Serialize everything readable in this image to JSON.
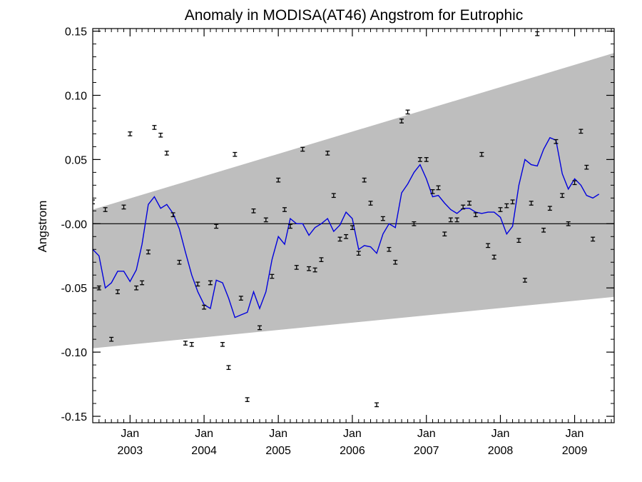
{
  "chart_data": {
    "type": "line",
    "title": "Anomaly in MODISA(AT46) Angstrom for Eutrophic",
    "xlabel": "",
    "ylabel": "Angstrom",
    "x_range": [
      "2002-07-01",
      "2009-07-15"
    ],
    "ylim": [
      -0.155,
      0.152
    ],
    "y_ticks": [
      {
        "value": 0.15,
        "label": "0.15"
      },
      {
        "value": 0.1,
        "label": "0.10"
      },
      {
        "value": 0.05,
        "label": "0.05"
      },
      {
        "value": 0.0,
        "label": "-0.00"
      },
      {
        "value": -0.05,
        "label": "-0.05"
      },
      {
        "value": -0.1,
        "label": "-0.10"
      },
      {
        "value": -0.15,
        "label": "-0.15"
      }
    ],
    "x_ticks": [
      {
        "date": "2003-01-01",
        "month": "Jan",
        "year": "2003"
      },
      {
        "date": "2004-01-01",
        "month": "Jan",
        "year": "2004"
      },
      {
        "date": "2005-01-01",
        "month": "Jan",
        "year": "2005"
      },
      {
        "date": "2006-01-01",
        "month": "Jan",
        "year": "2006"
      },
      {
        "date": "2007-01-01",
        "month": "Jan",
        "year": "2007"
      },
      {
        "date": "2008-01-01",
        "month": "Jan",
        "year": "2008"
      },
      {
        "date": "2009-01-01",
        "month": "Jan",
        "year": "2009"
      }
    ],
    "zero_line": 0.0,
    "band": {
      "start": {
        "date": "2002-07-01",
        "upper": 0.011,
        "lower": -0.097
      },
      "end": {
        "date": "2009-07-15",
        "upper": 0.133,
        "lower": -0.057
      },
      "color": "#bebebe"
    },
    "monthly_points": {
      "color": "#000000",
      "error": 0.0015,
      "points": [
        [
          "2002-07-01",
          0.017
        ],
        [
          "2002-08-01",
          -0.05
        ],
        [
          "2002-09-01",
          0.011
        ],
        [
          "2002-10-01",
          -0.09
        ],
        [
          "2002-11-01",
          -0.053
        ],
        [
          "2002-12-01",
          0.013
        ],
        [
          "2003-01-01",
          0.07
        ],
        [
          "2003-02-01",
          -0.05
        ],
        [
          "2003-03-01",
          -0.046
        ],
        [
          "2003-04-01",
          -0.022
        ],
        [
          "2003-05-01",
          0.075
        ],
        [
          "2003-06-01",
          0.069
        ],
        [
          "2003-07-01",
          0.055
        ],
        [
          "2003-08-01",
          0.007
        ],
        [
          "2003-09-01",
          -0.03
        ],
        [
          "2003-10-01",
          -0.093
        ],
        [
          "2003-11-01",
          -0.094
        ],
        [
          "2003-12-01",
          -0.047
        ],
        [
          "2004-01-01",
          -0.065
        ],
        [
          "2004-02-01",
          -0.046
        ],
        [
          "2004-03-01",
          -0.002
        ],
        [
          "2004-04-01",
          -0.094
        ],
        [
          "2004-05-01",
          -0.112
        ],
        [
          "2004-06-01",
          0.054
        ],
        [
          "2004-07-01",
          -0.058
        ],
        [
          "2004-08-01",
          -0.137
        ],
        [
          "2004-09-01",
          0.01
        ],
        [
          "2004-10-01",
          -0.081
        ],
        [
          "2004-11-01",
          0.003
        ],
        [
          "2004-12-01",
          -0.041
        ],
        [
          "2005-01-01",
          0.034
        ],
        [
          "2005-02-01",
          0.011
        ],
        [
          "2005-03-01",
          -0.002
        ],
        [
          "2005-04-01",
          -0.034
        ],
        [
          "2005-05-01",
          0.058
        ],
        [
          "2005-06-01",
          -0.035
        ],
        [
          "2005-07-01",
          -0.036
        ],
        [
          "2005-08-01",
          -0.028
        ],
        [
          "2005-09-01",
          0.055
        ],
        [
          "2005-10-01",
          0.022
        ],
        [
          "2005-11-01",
          -0.012
        ],
        [
          "2005-12-01",
          -0.01
        ],
        [
          "2006-01-01",
          -0.003
        ],
        [
          "2006-02-01",
          -0.023
        ],
        [
          "2006-03-01",
          0.034
        ],
        [
          "2006-04-01",
          0.016
        ],
        [
          "2006-05-01",
          -0.141
        ],
        [
          "2006-06-01",
          0.004
        ],
        [
          "2006-07-01",
          -0.02
        ],
        [
          "2006-08-01",
          -0.03
        ],
        [
          "2006-09-01",
          0.08
        ],
        [
          "2006-10-01",
          0.087
        ],
        [
          "2006-11-01",
          0.0
        ],
        [
          "2006-12-01",
          0.05
        ],
        [
          "2007-01-01",
          0.05
        ],
        [
          "2007-02-01",
          0.025
        ],
        [
          "2007-03-01",
          0.028
        ],
        [
          "2007-04-01",
          -0.008
        ],
        [
          "2007-05-01",
          0.003
        ],
        [
          "2007-06-01",
          0.003
        ],
        [
          "2007-07-01",
          0.013
        ],
        [
          "2007-08-01",
          0.016
        ],
        [
          "2007-09-01",
          0.007
        ],
        [
          "2007-10-01",
          0.054
        ],
        [
          "2007-11-01",
          -0.017
        ],
        [
          "2007-12-01",
          -0.026
        ],
        [
          "2008-01-01",
          0.011
        ],
        [
          "2008-02-01",
          0.014
        ],
        [
          "2008-03-01",
          0.017
        ],
        [
          "2008-04-01",
          -0.013
        ],
        [
          "2008-05-01",
          -0.044
        ],
        [
          "2008-06-01",
          0.016
        ],
        [
          "2008-07-01",
          0.148
        ],
        [
          "2008-08-01",
          -0.005
        ],
        [
          "2008-09-01",
          0.012
        ],
        [
          "2008-10-01",
          0.064
        ],
        [
          "2008-11-01",
          0.022
        ],
        [
          "2008-12-01",
          0.0
        ],
        [
          "2009-01-01",
          0.032
        ],
        [
          "2009-02-01",
          0.072
        ],
        [
          "2009-03-01",
          0.044
        ],
        [
          "2009-04-01",
          -0.012
        ]
      ]
    },
    "smoothed_line": {
      "color": "#0000dd",
      "points": [
        [
          "2002-07-01",
          -0.02
        ],
        [
          "2002-08-01",
          -0.025
        ],
        [
          "2002-09-01",
          -0.05
        ],
        [
          "2002-10-01",
          -0.046
        ],
        [
          "2002-11-01",
          -0.037
        ],
        [
          "2002-12-01",
          -0.037
        ],
        [
          "2003-01-01",
          -0.045
        ],
        [
          "2003-02-01",
          -0.036
        ],
        [
          "2003-03-01",
          -0.016
        ],
        [
          "2003-04-01",
          0.015
        ],
        [
          "2003-05-01",
          0.021
        ],
        [
          "2003-06-01",
          0.012
        ],
        [
          "2003-07-01",
          0.015
        ],
        [
          "2003-08-01",
          0.008
        ],
        [
          "2003-09-01",
          -0.004
        ],
        [
          "2003-10-01",
          -0.022
        ],
        [
          "2003-11-01",
          -0.04
        ],
        [
          "2003-12-01",
          -0.053
        ],
        [
          "2004-01-01",
          -0.063
        ],
        [
          "2004-02-01",
          -0.066
        ],
        [
          "2004-03-01",
          -0.044
        ],
        [
          "2004-04-01",
          -0.046
        ],
        [
          "2004-05-01",
          -0.058
        ],
        [
          "2004-06-01",
          -0.073
        ],
        [
          "2004-07-01",
          -0.071
        ],
        [
          "2004-08-01",
          -0.069
        ],
        [
          "2004-09-01",
          -0.053
        ],
        [
          "2004-10-01",
          -0.066
        ],
        [
          "2004-11-01",
          -0.053
        ],
        [
          "2004-12-01",
          -0.028
        ],
        [
          "2005-01-01",
          -0.01
        ],
        [
          "2005-02-01",
          -0.016
        ],
        [
          "2005-03-01",
          0.004
        ],
        [
          "2005-04-01",
          0.0
        ],
        [
          "2005-05-01",
          0.0
        ],
        [
          "2005-06-01",
          -0.009
        ],
        [
          "2005-07-01",
          -0.003
        ],
        [
          "2005-08-01",
          0.0
        ],
        [
          "2005-09-01",
          0.004
        ],
        [
          "2005-10-01",
          -0.006
        ],
        [
          "2005-11-01",
          -0.001
        ],
        [
          "2005-12-01",
          0.009
        ],
        [
          "2006-01-01",
          0.004
        ],
        [
          "2006-02-01",
          -0.02
        ],
        [
          "2006-03-01",
          -0.017
        ],
        [
          "2006-04-01",
          -0.018
        ],
        [
          "2006-05-01",
          -0.023
        ],
        [
          "2006-06-01",
          -0.008
        ],
        [
          "2006-07-01",
          0.0
        ],
        [
          "2006-08-01",
          -0.003
        ],
        [
          "2006-09-01",
          0.024
        ],
        [
          "2006-10-01",
          0.031
        ],
        [
          "2006-11-01",
          0.04
        ],
        [
          "2006-12-01",
          0.046
        ],
        [
          "2007-01-01",
          0.035
        ],
        [
          "2007-02-01",
          0.021
        ],
        [
          "2007-03-01",
          0.022
        ],
        [
          "2007-04-01",
          0.016
        ],
        [
          "2007-05-01",
          0.011
        ],
        [
          "2007-06-01",
          0.008
        ],
        [
          "2007-07-01",
          0.012
        ],
        [
          "2007-08-01",
          0.012
        ],
        [
          "2007-09-01",
          0.009
        ],
        [
          "2007-10-01",
          0.008
        ],
        [
          "2007-11-01",
          0.009
        ],
        [
          "2007-12-01",
          0.009
        ],
        [
          "2008-01-01",
          0.005
        ],
        [
          "2008-02-01",
          -0.008
        ],
        [
          "2008-03-01",
          -0.002
        ],
        [
          "2008-04-01",
          0.03
        ],
        [
          "2008-05-01",
          0.05
        ],
        [
          "2008-06-01",
          0.046
        ],
        [
          "2008-07-01",
          0.045
        ],
        [
          "2008-08-01",
          0.058
        ],
        [
          "2008-09-01",
          0.067
        ],
        [
          "2008-10-01",
          0.065
        ],
        [
          "2008-11-01",
          0.039
        ],
        [
          "2008-12-01",
          0.027
        ],
        [
          "2009-01-01",
          0.035
        ],
        [
          "2009-02-01",
          0.03
        ],
        [
          "2009-03-01",
          0.022
        ],
        [
          "2009-04-01",
          0.02
        ],
        [
          "2009-05-01",
          0.023
        ]
      ]
    }
  }
}
